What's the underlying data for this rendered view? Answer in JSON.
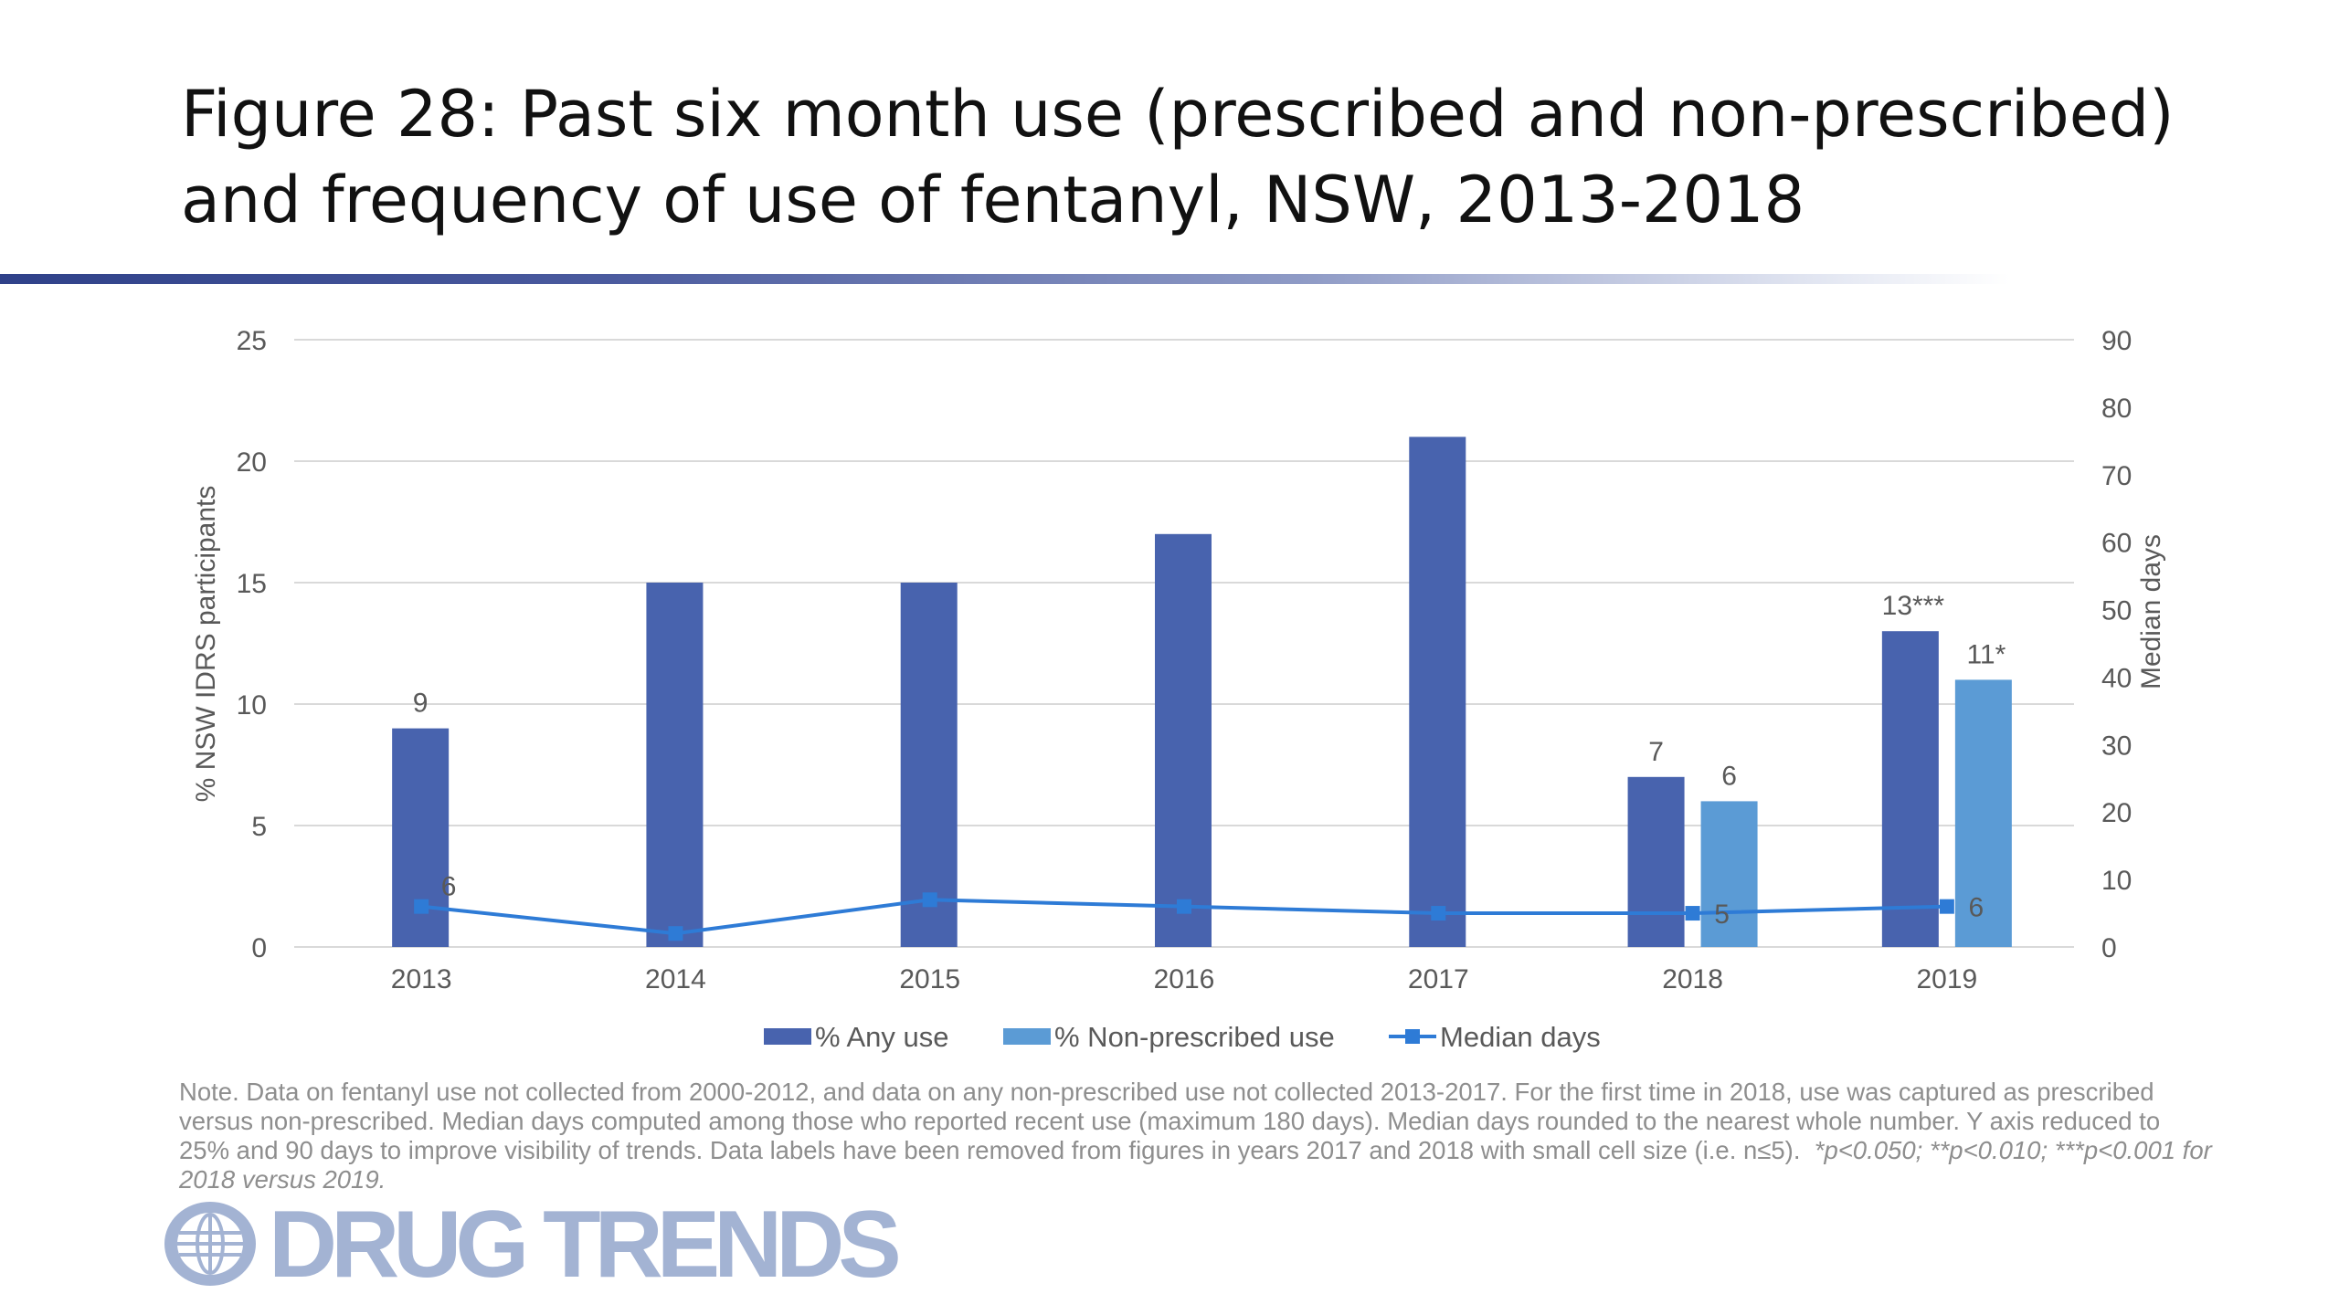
{
  "slide": {
    "title_line1": "Figure 28: Past six month use (prescribed and non-prescribed)",
    "title_line2": "and frequency of use of fentanyl, NSW, 2013-2018",
    "note": "Note. Data on fentanyl use not collected from 2000-2012, and data on any non-prescribed use not collected 2013-2017. For the first time in 2018, use was captured as prescribed versus non-prescribed. Median days computed among those who reported recent use (maximum 180 days). Median days rounded to the nearest whole number. Y axis reduced to 25% and 90 days to improve visibility of trends. Data labels have been removed from figures in years 2017 and 2018 with small cell size (i.e. n≤5).",
    "note_pvalues": "*p<0.050; **p<0.010; ***p<0.001 for 2018 versus 2019.",
    "logo_text": "DRUG TRENDS",
    "accent_color": "#2f4189"
  },
  "chart_data": {
    "type": "bar",
    "categories": [
      "2013",
      "2014",
      "2015",
      "2016",
      "2017",
      "2018",
      "2019"
    ],
    "series": [
      {
        "name": "% Any use",
        "type": "bar",
        "axis": "left",
        "color": "#4863ae",
        "values": [
          9,
          15,
          15,
          17,
          21,
          7,
          13
        ],
        "labels": [
          "9",
          null,
          null,
          null,
          null,
          "7",
          "13***"
        ]
      },
      {
        "name": "% Non-prescribed use",
        "type": "bar",
        "axis": "left",
        "color": "#5b9bd5",
        "values": [
          null,
          null,
          null,
          null,
          null,
          6,
          11
        ],
        "labels": [
          null,
          null,
          null,
          null,
          null,
          "6",
          "11*"
        ]
      },
      {
        "name": "Median days",
        "type": "line",
        "axis": "right",
        "color": "#2e7bd6",
        "values": [
          6,
          2,
          7,
          6,
          5,
          5,
          6
        ],
        "labels": [
          "6",
          null,
          null,
          null,
          null,
          "5",
          "6"
        ]
      }
    ],
    "ylabel": "% NSW IDRS participants",
    "ylim": [
      0,
      25
    ],
    "yticks": [
      0,
      5,
      10,
      15,
      20,
      25
    ],
    "y2label": "Median days",
    "y2lim": [
      0,
      90
    ],
    "y2ticks": [
      0,
      10,
      20,
      30,
      40,
      50,
      60,
      70,
      80,
      90
    ],
    "grid": true,
    "legend_position": "bottom"
  }
}
